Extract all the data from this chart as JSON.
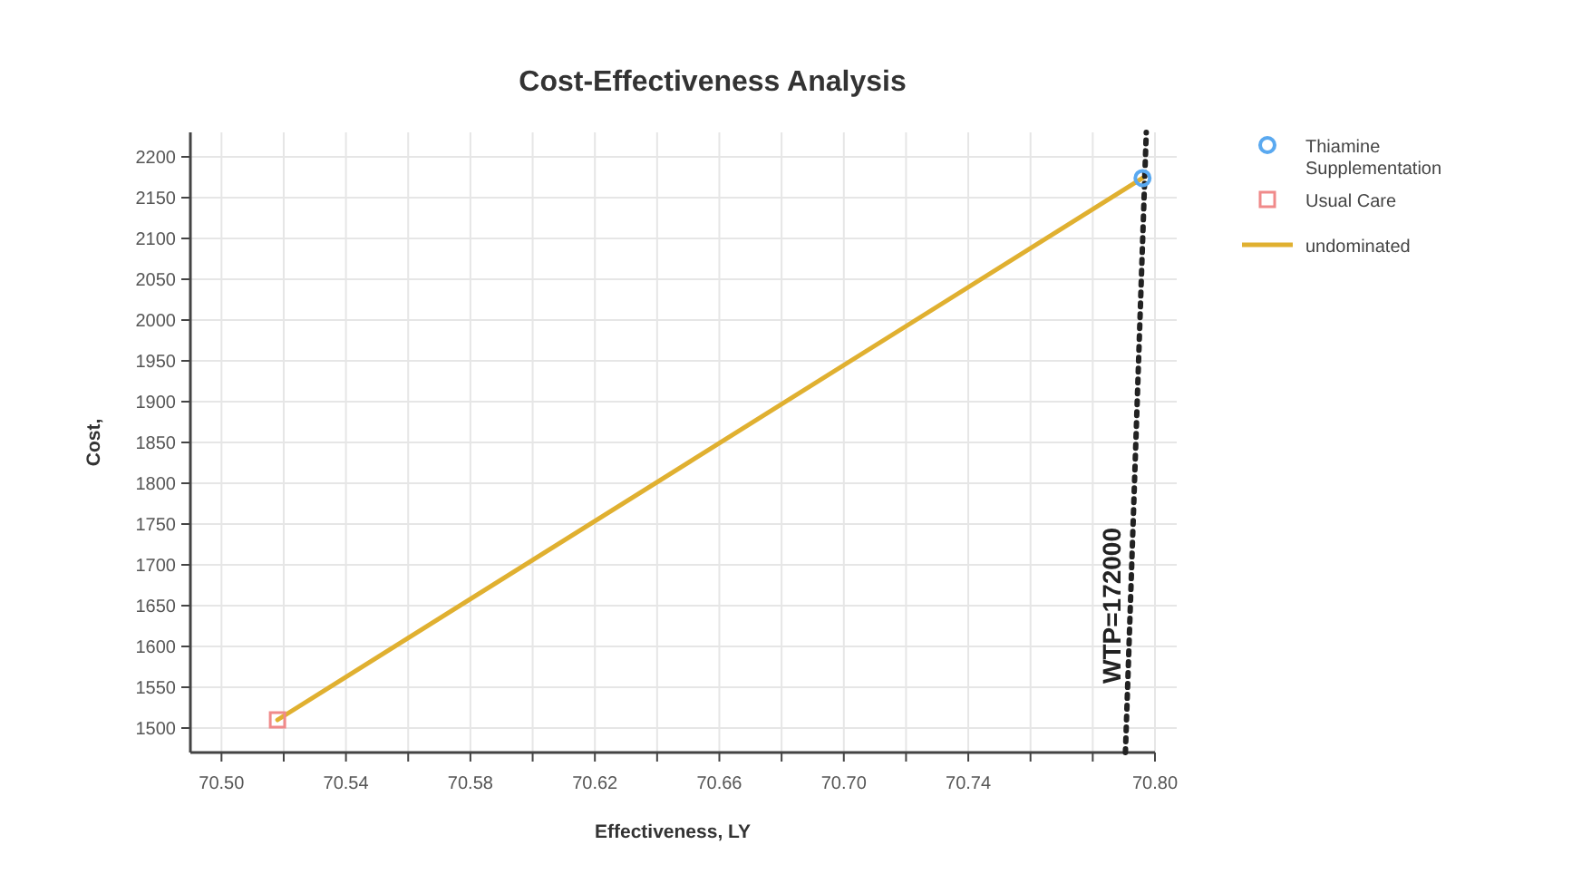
{
  "chart_data": {
    "type": "scatter",
    "title": "Cost-Effectiveness Analysis",
    "xlabel": "Effectiveness, LY",
    "ylabel": "Cost,",
    "xlim": [
      70.49,
      70.8
    ],
    "xticks": [
      {
        "value": 70.5,
        "label": "70.50"
      },
      {
        "value": 70.52,
        "label": null
      },
      70.54,
      {
        "value": 70.56,
        "label": null
      },
      70.58,
      {
        "value": 70.6,
        "label": null
      },
      70.62,
      {
        "value": 70.64,
        "label": null
      },
      70.66,
      {
        "value": 70.68,
        "label": null
      },
      {
        "value": 70.7,
        "label": "70.70"
      },
      {
        "value": 70.72,
        "label": null
      },
      70.74,
      {
        "value": 70.76,
        "label": null
      },
      {
        "value": 70.78,
        "label": null
      },
      {
        "value": 70.8,
        "label": "70.80"
      }
    ],
    "ylim": [
      1470,
      2230
    ],
    "yticks": [
      1500,
      1550,
      1600,
      1650,
      1700,
      1750,
      1800,
      1850,
      1900,
      1950,
      2000,
      2050,
      2100,
      2150,
      2200
    ],
    "grid": true,
    "legend": "right",
    "series": [
      {
        "name": "Thiamine Supplementation",
        "marker": "circle",
        "color": "#5aa9f0",
        "x": [
          70.796
        ],
        "values": [
          2174
        ]
      },
      {
        "name": "Usual Care",
        "marker": "square",
        "color": "#f08a8a",
        "x": [
          70.518
        ],
        "values": [
          1510
        ]
      },
      {
        "name": "undominated",
        "type": "line",
        "color": "#e0b030",
        "x": [
          70.518,
          70.796
        ],
        "values": [
          1510,
          2174
        ]
      },
      {
        "type": "line",
        "line_style": "dotted",
        "color": "#222222",
        "x": [
          70.7905,
          70.7972
        ],
        "values": [
          1470,
          2230
        ]
      }
    ],
    "annotations": [
      {
        "text": "WTP=172000",
        "x": 70.7925,
        "y": 1650
      }
    ]
  }
}
